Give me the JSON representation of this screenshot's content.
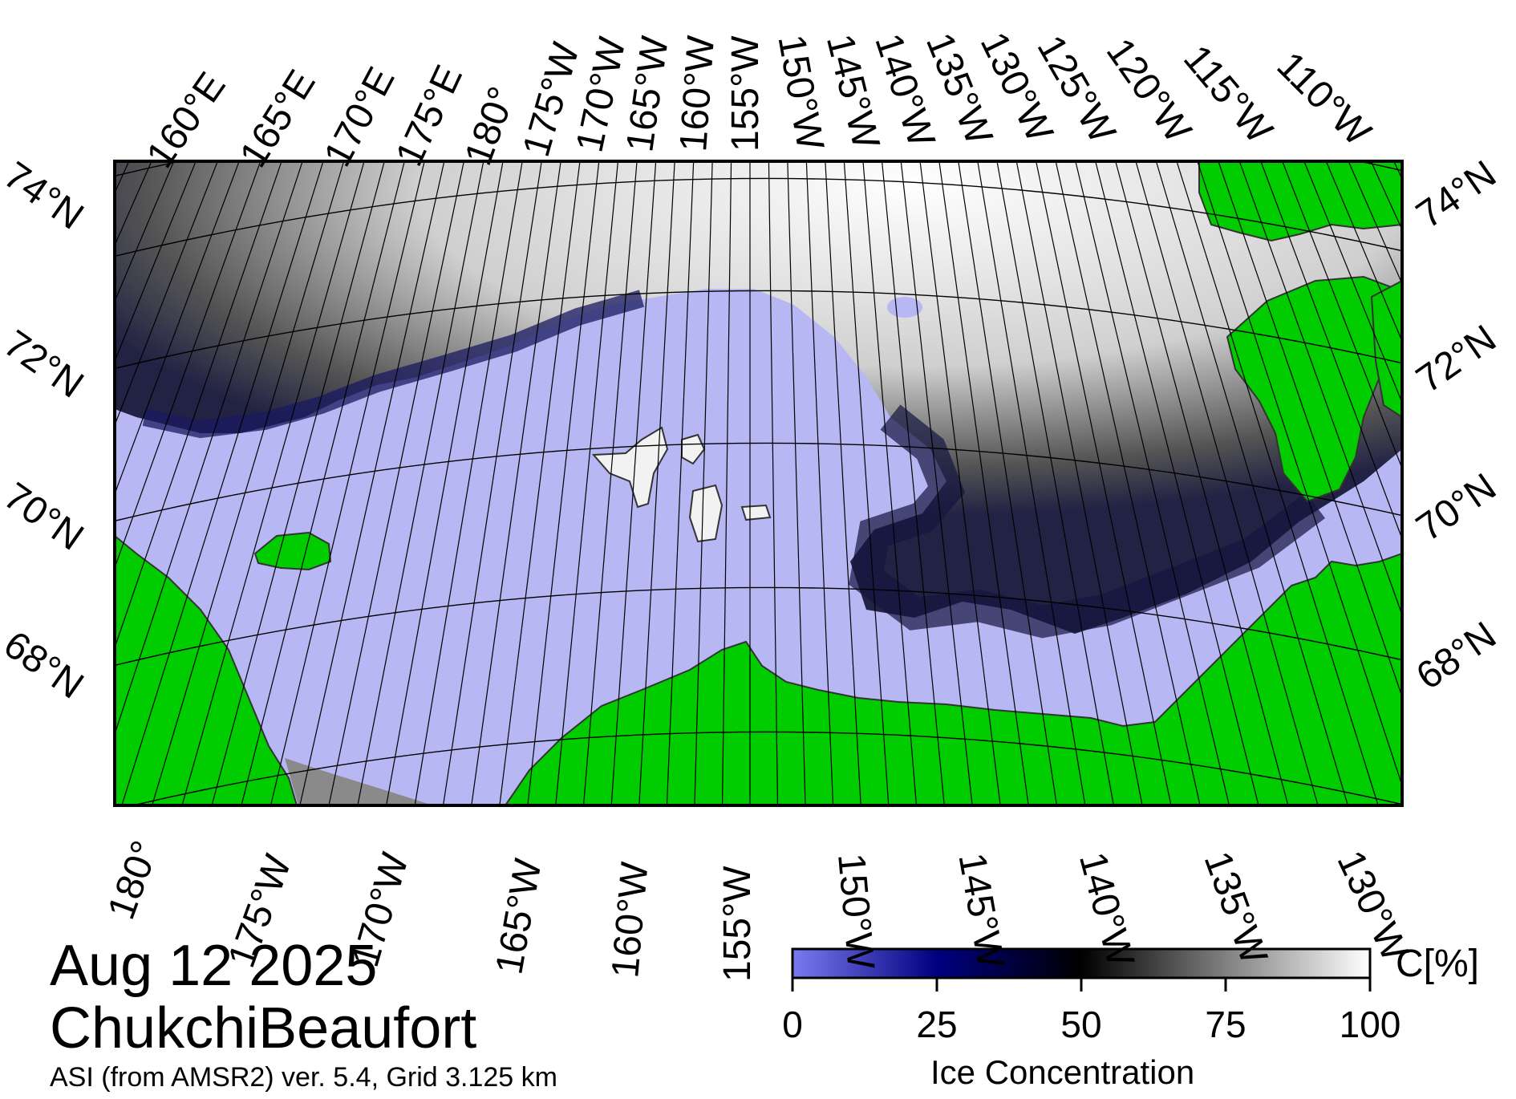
{
  "map": {
    "date": "Aug 12 2025",
    "region": "ChukchiBeaufort",
    "source": "ASI (from AMSR2) ver. 5.4,  Grid 3.125 km",
    "colors": {
      "land": "#00cc00",
      "open_water": "#b7b7f3",
      "no_data": "#8a8a8a",
      "gridline": "#000000"
    },
    "top_longitude_labels": [
      "160°E",
      "165°E",
      "170°E",
      "175°E",
      "180°",
      "175°W",
      "170°W",
      "165°W",
      "160°W",
      "155°W",
      "150°W",
      "145°W",
      "140°W",
      "135°W",
      "130°W",
      "125°W",
      "120°W",
      "115°W",
      "110°W"
    ],
    "bottom_longitude_labels": [
      "180°",
      "175°W",
      "170°W",
      "165°W",
      "160°W",
      "155°W",
      "150°W",
      "145°W",
      "140°W",
      "135°W",
      "130°W"
    ],
    "left_latitude_labels": [
      "74°N",
      "72°N",
      "70°N",
      "68°N"
    ],
    "right_latitude_labels": [
      "74°N",
      "72°N",
      "70°N",
      "68°N"
    ]
  },
  "colorbar": {
    "title": "Ice Concentration",
    "unit": "C[%]",
    "ticks": [
      "0",
      "25",
      "50",
      "75",
      "100"
    ],
    "range": [
      0,
      100
    ],
    "stops": [
      {
        "value": 0,
        "color": "#7b7bf0"
      },
      {
        "value": 25,
        "color": "#000080"
      },
      {
        "value": 50,
        "color": "#000000"
      },
      {
        "value": 75,
        "color": "#808080"
      },
      {
        "value": 100,
        "color": "#ffffff"
      }
    ]
  }
}
